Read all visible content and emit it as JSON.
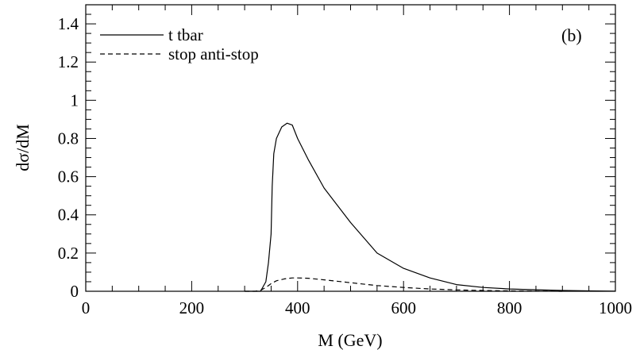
{
  "chart_data": {
    "type": "line",
    "panel_label": "(b)",
    "xlabel": "M (GeV)",
    "ylabel": "dσ/dM",
    "xlim": [
      0,
      1000
    ],
    "ylim": [
      0,
      1.5
    ],
    "x_ticks": [
      0,
      200,
      400,
      600,
      800,
      1000
    ],
    "y_ticks": [
      0,
      0.2,
      0.4,
      0.6,
      0.8,
      1,
      1.2,
      1.4
    ],
    "grid": false,
    "legend_position": "top-left",
    "series": [
      {
        "name": "t tbar",
        "style": "solid",
        "x": [
          300,
          330,
          340,
          345,
          350,
          352,
          355,
          360,
          370,
          380,
          390,
          400,
          420,
          450,
          500,
          550,
          600,
          650,
          700,
          750,
          800,
          850,
          900,
          950,
          1000
        ],
        "y": [
          0,
          0,
          0.05,
          0.15,
          0.3,
          0.55,
          0.72,
          0.8,
          0.86,
          0.88,
          0.87,
          0.8,
          0.69,
          0.54,
          0.36,
          0.2,
          0.12,
          0.07,
          0.035,
          0.02,
          0.012,
          0.008,
          0.004,
          0.002,
          0.001
        ]
      },
      {
        "name": "stop anti-stop",
        "style": "dashed",
        "x": [
          300,
          320,
          330,
          340,
          350,
          360,
          375,
          390,
          400,
          420,
          450,
          500,
          550,
          600,
          650,
          700,
          750,
          800,
          850,
          900
        ],
        "y": [
          0,
          0,
          0.005,
          0.02,
          0.04,
          0.055,
          0.065,
          0.07,
          0.07,
          0.068,
          0.06,
          0.045,
          0.03,
          0.02,
          0.012,
          0.007,
          0.004,
          0.002,
          0.001,
          0
        ]
      }
    ]
  }
}
